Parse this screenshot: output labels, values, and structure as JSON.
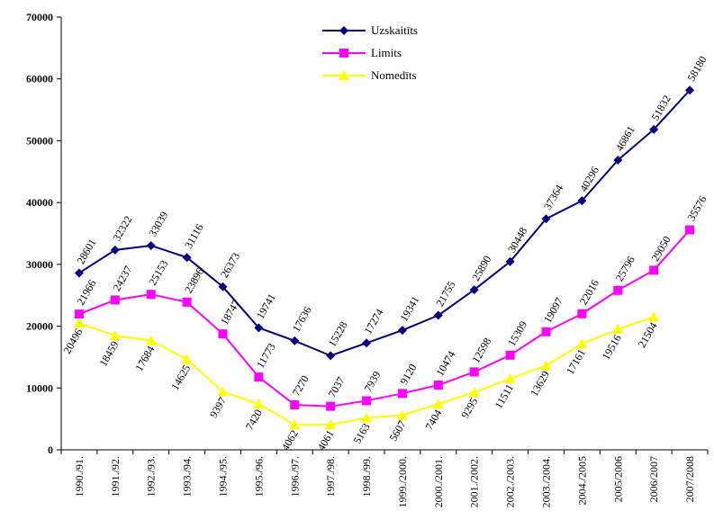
{
  "chart_data": {
    "type": "line",
    "title": "",
    "xlabel": "",
    "ylabel": "",
    "ylim": [
      0,
      70000
    ],
    "yticks": [
      0,
      10000,
      20000,
      30000,
      40000,
      50000,
      60000,
      70000
    ],
    "grid": false,
    "legend_position": "top-center",
    "categories": [
      "1990./91.",
      "1991./92.",
      "1992./93.",
      "1993./94.",
      "1994./95.",
      "1995./96.",
      "1996./97.",
      "1997./98.",
      "1998./99.",
      "1999./2000.",
      "2000./2001.",
      "2001./2002.",
      "2002./2003.",
      "2003./2004.",
      "2004./2005",
      "2005/2006",
      "2006/2007",
      "2007/2008"
    ],
    "series": [
      {
        "name": "Uzskaitīts",
        "color": "#000080",
        "marker": "diamond",
        "values": [
          28601,
          32322,
          33039,
          31116,
          26373,
          19741,
          17636,
          15228,
          17274,
          19341,
          21755,
          25890,
          30448,
          37364,
          40296,
          46861,
          51832,
          58180
        ]
      },
      {
        "name": "Limits",
        "color": "#ff00ff",
        "marker": "square",
        "values": [
          21966,
          24237,
          25153,
          23896,
          18747,
          11773,
          7270,
          7037,
          7939,
          9120,
          10474,
          12598,
          15309,
          19097,
          22016,
          25796,
          29050,
          35576
        ]
      },
      {
        "name": "Nomedīts",
        "color": "#ffff00",
        "marker": "triangle",
        "values": [
          20496,
          18459,
          17684,
          14625,
          9397,
          7420,
          4062,
          4061,
          5163,
          5607,
          7404,
          9295,
          11511,
          13629,
          17161,
          19516,
          21504,
          null
        ]
      }
    ]
  }
}
